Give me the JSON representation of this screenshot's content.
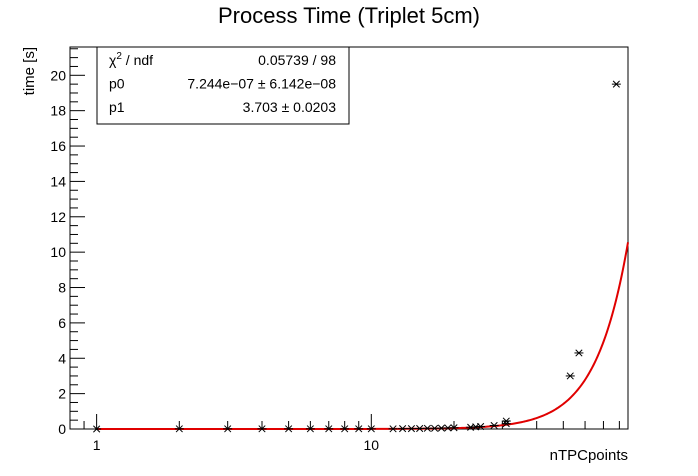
{
  "chart_data": {
    "type": "scatter",
    "title": "Process Time (Triplet 5cm)",
    "xlabel": "nTPCpoints",
    "ylabel": "time [s]",
    "x_scale": "log",
    "xlim": [
      0.8,
      86
    ],
    "ylim": [
      0,
      21.6
    ],
    "x_tick_labels": [
      "1",
      "10"
    ],
    "x_tick_values": [
      1,
      10
    ],
    "y_tick_labels": [
      "0",
      "2",
      "4",
      "6",
      "8",
      "10",
      "12",
      "14",
      "16",
      "18",
      "20"
    ],
    "y_tick_values": [
      0,
      2,
      4,
      6,
      8,
      10,
      12,
      14,
      16,
      18,
      20
    ],
    "grid": false,
    "marker": "asterisk",
    "marker_color": "#000000",
    "fit_color": "#e00000",
    "fit_function": "p0 * x^p1",
    "stats": {
      "rows": [
        {
          "name_pre": "χ",
          "name_sup": "2",
          "name_post": " / ndf",
          "value": "0.05739 / 98"
        },
        {
          "name_pre": "p0",
          "name_sup": "",
          "name_post": "",
          "value": "7.244e−07 ± 6.142e−08"
        },
        {
          "name_pre": "p1",
          "name_sup": "",
          "name_post": "",
          "value": "3.703 ± 0.0203"
        }
      ],
      "p0": 7.244e-07,
      "p1": 3.703
    },
    "series": [
      {
        "x": [
          1,
          2,
          3,
          4,
          5,
          6,
          7,
          8,
          9,
          10,
          12,
          13,
          14,
          15,
          16,
          17,
          18,
          19,
          20,
          23,
          24,
          25,
          28,
          31,
          31,
          53,
          57,
          78
        ],
        "y": [
          0.0,
          0.01,
          0.01,
          0.01,
          0.01,
          0.01,
          0.01,
          0.01,
          0.01,
          0.01,
          0.01,
          0.02,
          0.02,
          0.03,
          0.04,
          0.04,
          0.05,
          0.06,
          0.07,
          0.1,
          0.12,
          0.14,
          0.2,
          0.3,
          0.45,
          3.0,
          4.3,
          19.5
        ]
      }
    ]
  }
}
